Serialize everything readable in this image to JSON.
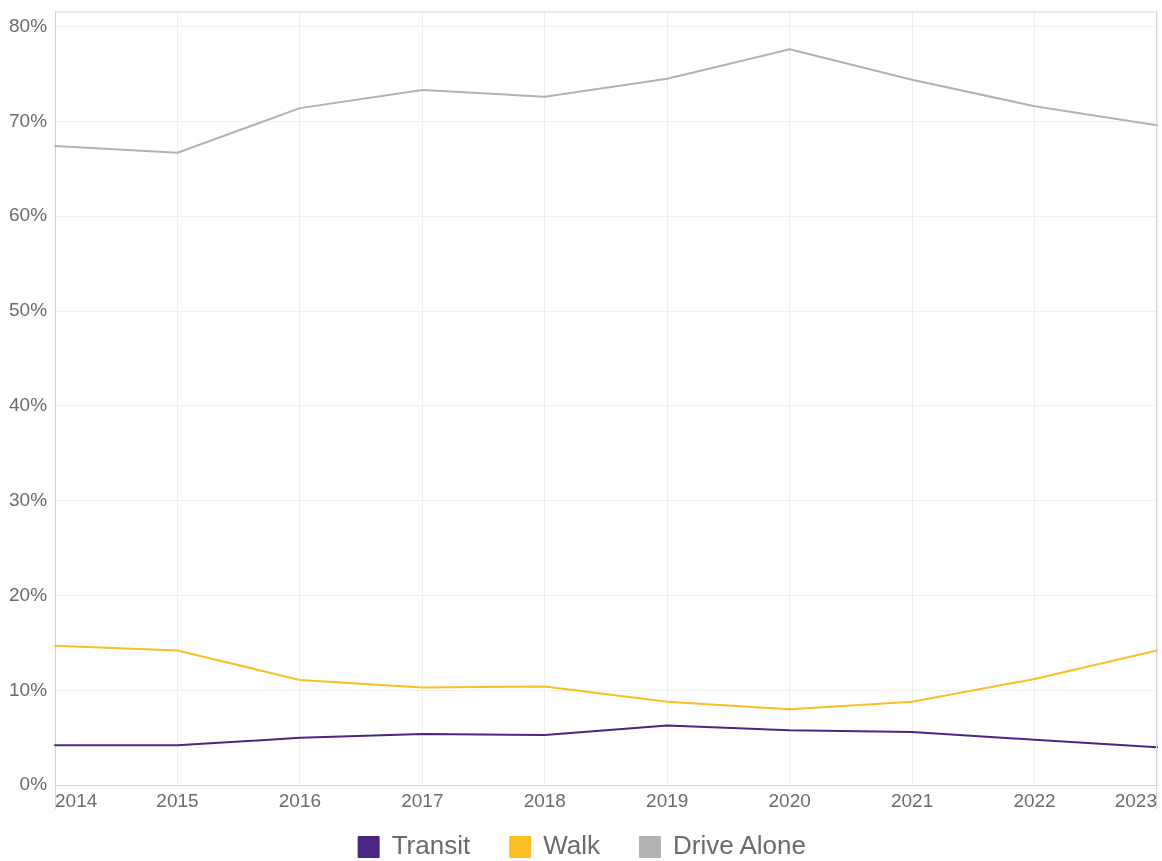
{
  "chart_data": {
    "type": "line",
    "categories": [
      "2014",
      "2015",
      "2016",
      "2017",
      "2018",
      "2019",
      "2020",
      "2021",
      "2022",
      "2023"
    ],
    "series": [
      {
        "name": "Transit",
        "color": "#4b2583",
        "values": [
          4.2,
          4.2,
          5.0,
          5.4,
          5.3,
          6.3,
          5.8,
          5.6,
          4.8,
          4.0
        ]
      },
      {
        "name": "Walk",
        "color": "#fbbf24",
        "values": [
          14.7,
          14.2,
          11.1,
          10.3,
          10.4,
          8.8,
          8.0,
          8.8,
          11.2,
          14.2
        ]
      },
      {
        "name": "Drive Alone",
        "color": "#b1b3b3",
        "values": [
          67.4,
          66.7,
          71.4,
          73.3,
          72.6,
          74.5,
          77.6,
          74.4,
          71.6,
          69.6
        ]
      }
    ],
    "ylim": [
      0,
      81.6
    ],
    "yticks": [
      {
        "value": 0,
        "label": "0%"
      },
      {
        "value": 10,
        "label": "10%"
      },
      {
        "value": 20,
        "label": "20%"
      },
      {
        "value": 30,
        "label": "30%"
      },
      {
        "value": 40,
        "label": "40%"
      },
      {
        "value": 50,
        "label": "50%"
      },
      {
        "value": 60,
        "label": "60%"
      },
      {
        "value": 70,
        "label": "70%"
      },
      {
        "value": 80,
        "label": "80%"
      }
    ],
    "grid": true,
    "legend": "bottom",
    "marker": "none",
    "line_style": "solid"
  }
}
